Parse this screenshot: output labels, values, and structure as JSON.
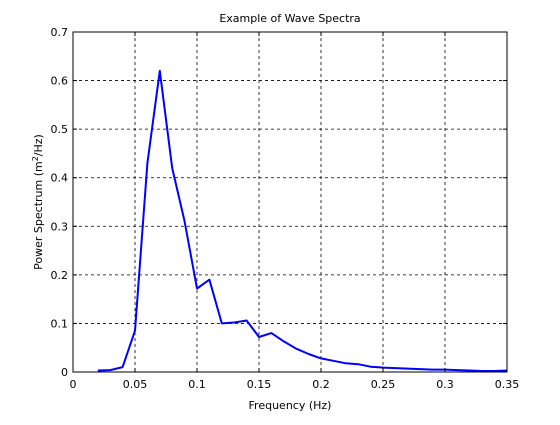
{
  "chart_data": {
    "type": "line",
    "title": "Example of Wave Spectra",
    "xlabel": "Frequency (Hz)",
    "ylabel_prefix": "Power Spectrum (m",
    "ylabel_sup": "2",
    "ylabel_suffix": "/Hz)",
    "xlim": [
      0,
      0.35
    ],
    "ylim": [
      0,
      0.7
    ],
    "xticks": [
      0,
      0.05,
      0.1,
      0.15,
      0.2,
      0.25,
      0.3,
      0.35
    ],
    "xtick_labels": [
      "0",
      "0.05",
      "0.1",
      "0.15",
      "0.2",
      "0.25",
      "0.3",
      "0.35"
    ],
    "yticks": [
      0,
      0.1,
      0.2,
      0.3,
      0.4,
      0.5,
      0.6,
      0.7
    ],
    "ytick_labels": [
      "0",
      "0.1",
      "0.2",
      "0.3",
      "0.4",
      "0.5",
      "0.6",
      "0.7"
    ],
    "grid": true,
    "grid_style": "dashed",
    "line_color": "#0000ff",
    "series": [
      {
        "x": [
          0.02,
          0.03,
          0.04,
          0.05,
          0.06,
          0.07,
          0.08,
          0.09,
          0.1,
          0.11,
          0.12,
          0.13,
          0.14,
          0.15,
          0.16,
          0.17,
          0.18,
          0.19,
          0.2,
          0.21,
          0.22,
          0.23,
          0.24,
          0.25,
          0.26,
          0.27,
          0.28,
          0.29,
          0.3,
          0.31,
          0.32,
          0.33,
          0.34,
          0.35
        ],
        "y": [
          0.003,
          0.004,
          0.01,
          0.085,
          0.43,
          0.62,
          0.42,
          0.31,
          0.172,
          0.19,
          0.1,
          0.102,
          0.106,
          0.072,
          0.08,
          0.063,
          0.048,
          0.037,
          0.028,
          0.023,
          0.018,
          0.016,
          0.011,
          0.009,
          0.008,
          0.007,
          0.006,
          0.005,
          0.005,
          0.004,
          0.003,
          0.002,
          0.002,
          0.003
        ]
      }
    ]
  }
}
